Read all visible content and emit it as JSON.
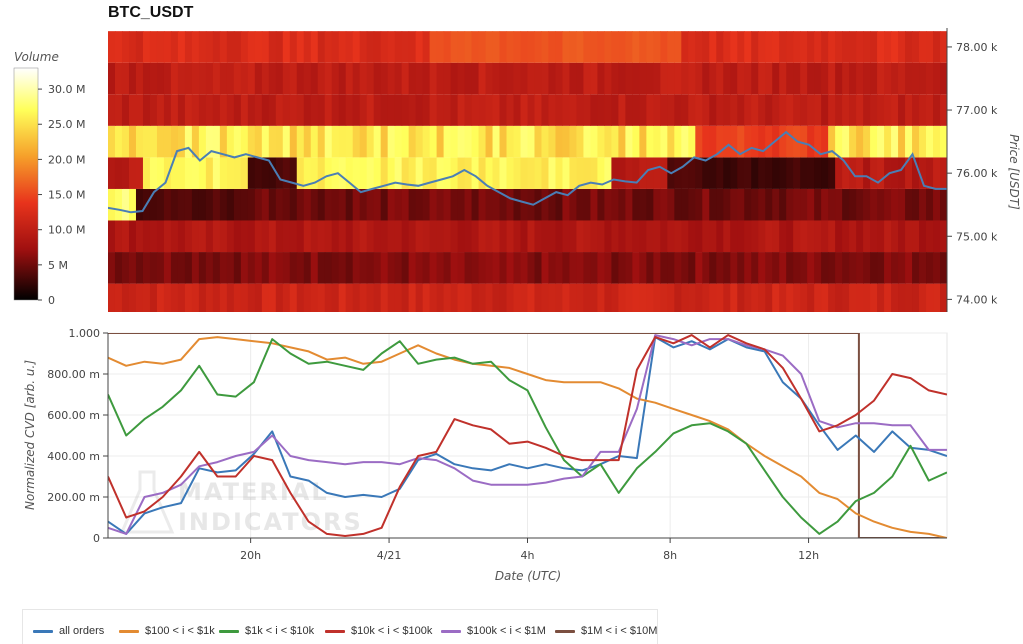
{
  "page": {
    "title": "BTC_USDT"
  },
  "chart_data": [
    {
      "type": "heatmap",
      "title": "BTC_USDT",
      "colorbar": {
        "label": "Volume",
        "ticks": [
          "0",
          "5 M",
          "10.0 M",
          "15.0 M",
          "20.0 M",
          "25.0 M",
          "30.0 M"
        ],
        "tick_values": [
          0,
          5,
          10,
          15,
          20,
          25,
          30
        ],
        "range": [
          0,
          33
        ],
        "colors": [
          "#000000",
          "#a01010",
          "#e8341c",
          "#f6a02a",
          "#ffff5a",
          "#ffffff"
        ]
      },
      "ylabel": "Price [USDT]",
      "y_ticks": [
        "74.00 k",
        "75.00 k",
        "76.00 k",
        "77.00 k",
        "78.00 k"
      ],
      "y_tick_values": [
        74000,
        75000,
        76000,
        77000,
        78000
      ],
      "ylim": [
        73800,
        78300
      ],
      "price_bands": [
        74000,
        74500,
        75000,
        75500,
        76000,
        76500,
        77000,
        77500,
        78000
      ],
      "price_line": {
        "color": "#4a7eb5",
        "values": [
          75450,
          75420,
          75380,
          75400,
          75700,
          75850,
          76350,
          76400,
          76200,
          76350,
          76300,
          76250,
          76300,
          76250,
          76200,
          75900,
          75850,
          75800,
          75850,
          75950,
          76000,
          75850,
          75700,
          75750,
          75800,
          75850,
          75820,
          75800,
          75850,
          75900,
          75950,
          76050,
          75950,
          75800,
          75700,
          75600,
          75550,
          75500,
          75600,
          75700,
          75650,
          75800,
          75850,
          75820,
          75900,
          75870,
          75850,
          76050,
          76100,
          76000,
          76100,
          76250,
          76200,
          76300,
          76450,
          76300,
          76400,
          76350,
          76500,
          76650,
          76500,
          76450,
          76300,
          76350,
          76200,
          75950,
          75950,
          75850,
          76000,
          76050,
          76300,
          75800,
          75750,
          75750
        ]
      }
    },
    {
      "type": "line",
      "xlabel": "Date (UTC)",
      "ylabel": "Normalized CVD [arb. u.]",
      "x_ticks": [
        "20h",
        "4/21",
        "4h",
        "8h",
        "12h"
      ],
      "y_ticks": [
        "0",
        "200.00 m",
        "400.00 m",
        "600.00 m",
        "800.00 m",
        "1.000"
      ],
      "y_tick_values": [
        0,
        0.2,
        0.4,
        0.6,
        0.8,
        1.0
      ],
      "ylim": [
        0,
        1
      ],
      "series": [
        {
          "name": "all orders",
          "color": "#3a78b8",
          "values": [
            0.08,
            0.02,
            0.12,
            0.15,
            0.17,
            0.34,
            0.32,
            0.33,
            0.41,
            0.52,
            0.3,
            0.28,
            0.22,
            0.2,
            0.21,
            0.2,
            0.24,
            0.38,
            0.41,
            0.36,
            0.34,
            0.33,
            0.36,
            0.34,
            0.36,
            0.34,
            0.33,
            0.36,
            0.4,
            0.39,
            0.98,
            0.93,
            0.96,
            0.92,
            0.97,
            0.93,
            0.91,
            0.76,
            0.68,
            0.55,
            0.43,
            0.5,
            0.42,
            0.52,
            0.44,
            0.43,
            0.4
          ]
        },
        {
          "name": "$100 < i < $1k",
          "color": "#e38b32",
          "values": [
            0.88,
            0.84,
            0.86,
            0.85,
            0.87,
            0.97,
            0.98,
            0.97,
            0.96,
            0.95,
            0.93,
            0.91,
            0.87,
            0.88,
            0.85,
            0.86,
            0.9,
            0.94,
            0.9,
            0.87,
            0.85,
            0.84,
            0.83,
            0.8,
            0.77,
            0.76,
            0.76,
            0.76,
            0.73,
            0.68,
            0.66,
            0.63,
            0.6,
            0.57,
            0.53,
            0.46,
            0.4,
            0.35,
            0.3,
            0.22,
            0.19,
            0.12,
            0.08,
            0.05,
            0.03,
            0.02,
            0.0
          ]
        },
        {
          "name": "$1k < i < $10k",
          "color": "#3e9a3e",
          "values": [
            0.7,
            0.5,
            0.58,
            0.64,
            0.72,
            0.84,
            0.7,
            0.69,
            0.76,
            0.97,
            0.9,
            0.85,
            0.86,
            0.84,
            0.82,
            0.9,
            0.96,
            0.85,
            0.87,
            0.88,
            0.85,
            0.86,
            0.77,
            0.72,
            0.54,
            0.38,
            0.3,
            0.36,
            0.22,
            0.34,
            0.42,
            0.51,
            0.55,
            0.56,
            0.52,
            0.46,
            0.33,
            0.2,
            0.1,
            0.02,
            0.08,
            0.18,
            0.22,
            0.3,
            0.45,
            0.28,
            0.32
          ]
        },
        {
          "name": "$10k < i < $100k",
          "color": "#c0312b",
          "values": [
            0.3,
            0.1,
            0.13,
            0.2,
            0.3,
            0.42,
            0.3,
            0.3,
            0.4,
            0.38,
            0.22,
            0.08,
            0.02,
            0.01,
            0.02,
            0.05,
            0.25,
            0.4,
            0.42,
            0.58,
            0.55,
            0.53,
            0.46,
            0.47,
            0.44,
            0.4,
            0.38,
            0.38,
            0.38,
            0.82,
            0.98,
            0.95,
            0.99,
            0.93,
            0.99,
            0.95,
            0.92,
            0.83,
            0.68,
            0.52,
            0.55,
            0.6,
            0.67,
            0.8,
            0.78,
            0.72,
            0.7
          ]
        },
        {
          "name": "$100k < i < $1M",
          "color": "#9b6cc4",
          "values": [
            0.05,
            0.02,
            0.2,
            0.22,
            0.26,
            0.35,
            0.37,
            0.4,
            0.42,
            0.5,
            0.4,
            0.38,
            0.37,
            0.36,
            0.37,
            0.37,
            0.36,
            0.39,
            0.38,
            0.34,
            0.28,
            0.26,
            0.26,
            0.26,
            0.27,
            0.29,
            0.3,
            0.42,
            0.42,
            0.63,
            0.99,
            0.97,
            0.94,
            0.97,
            0.97,
            0.94,
            0.92,
            0.89,
            0.8,
            0.57,
            0.54,
            0.56,
            0.56,
            0.55,
            0.55,
            0.43,
            0.43
          ]
        },
        {
          "name": "$1M < i < $10M",
          "color": "#7b4f40",
          "values": [
            1,
            1,
            1,
            1,
            1,
            1,
            1,
            1,
            1,
            1,
            1,
            1,
            1,
            1,
            1,
            1,
            1,
            1,
            1,
            1,
            1,
            1,
            1,
            1,
            1,
            1,
            1,
            1,
            1,
            1,
            1,
            1,
            1,
            1,
            1,
            1,
            1,
            1,
            1,
            1,
            1,
            0,
            0,
            0,
            0,
            0,
            0
          ]
        }
      ]
    }
  ],
  "watermark": "MATERIAL INDICATORS"
}
